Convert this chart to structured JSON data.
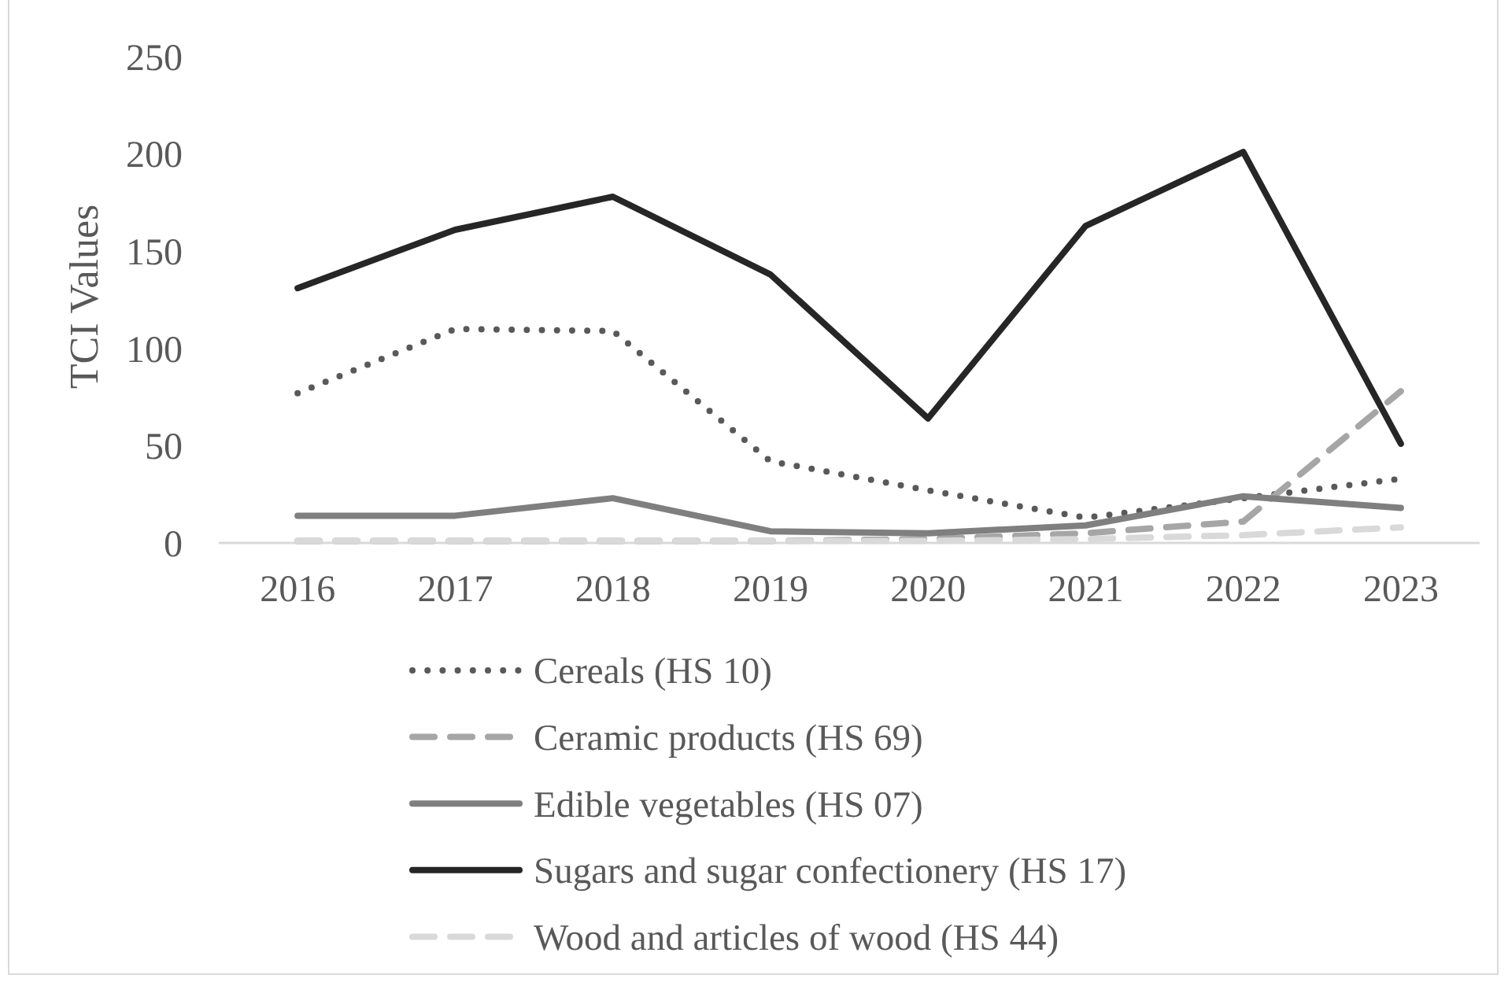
{
  "chart_data": {
    "type": "line",
    "ylabel": "TCI Values",
    "categories": [
      "2016",
      "2017",
      "2018",
      "2019",
      "2020",
      "2021",
      "2022",
      "2023"
    ],
    "series": [
      {
        "name": "Cereals (HS 10)",
        "color": "#595959",
        "line_style": "dotted",
        "values": [
          77,
          110,
          109,
          42,
          27,
          13,
          23,
          33
        ]
      },
      {
        "name": "Ceramic products (HS 69)",
        "color": "#a6a6a6",
        "line_style": "dashed",
        "values": [
          1,
          1,
          1,
          1,
          2,
          5,
          11,
          78
        ]
      },
      {
        "name": "Edible vegetables (HS 07)",
        "color": "#7f7f7f",
        "line_style": "solid",
        "values": [
          14,
          14,
          23,
          6,
          5,
          9,
          24,
          18
        ]
      },
      {
        "name": "Sugars and sugar confectionery (HS 17)",
        "color": "#262626",
        "line_style": "solid",
        "values": [
          131,
          161,
          178,
          138,
          64,
          163,
          201,
          51
        ]
      },
      {
        "name": "Wood and articles of wood (HS 44)",
        "color": "#d9d9d9",
        "line_style": "dashed",
        "values": [
          1,
          1,
          1,
          1,
          1,
          2,
          4,
          8
        ]
      }
    ],
    "ylim": [
      0,
      250
    ],
    "yticks": [
      0,
      50,
      100,
      150,
      200,
      250
    ],
    "grid": false,
    "legend": "bottom",
    "marker": "none"
  }
}
